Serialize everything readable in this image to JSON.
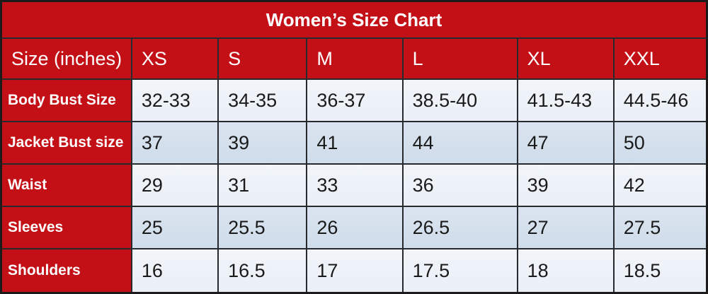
{
  "title": "Women’s Size Chart",
  "colors": {
    "red": "#c31016",
    "row_light": "#eaeff7",
    "row_dark": "#cfdcea",
    "border": "#26292e",
    "outer_border": "#1b1b1b",
    "header_text": "#ffffff",
    "data_text": "#1a1a1a"
  },
  "table": {
    "columns": [
      "Size (inches)",
      "XS",
      "S",
      "M",
      "L",
      "XL",
      "XXL"
    ],
    "rows": [
      {
        "label": "Body Bust Size",
        "values": [
          "32-33",
          "34-35",
          "36-37",
          "38.5-40",
          "41.5-43",
          "44.5-46"
        ]
      },
      {
        "label": "Jacket Bust size",
        "values": [
          "37",
          "39",
          "41",
          "44",
          "47",
          "50"
        ]
      },
      {
        "label": "Waist",
        "values": [
          "29",
          "31",
          "33",
          "36",
          "39",
          "42"
        ]
      },
      {
        "label": "Sleeves",
        "values": [
          "25",
          "25.5",
          "26",
          "26.5",
          "27",
          "27.5"
        ]
      },
      {
        "label": "Shoulders",
        "values": [
          "16",
          "16.5",
          "17",
          "17.5",
          "18",
          "18.5"
        ]
      }
    ]
  },
  "chart_data": {
    "type": "table",
    "title": "Women’s Size Chart",
    "unit": "inches",
    "categories": [
      "XS",
      "S",
      "M",
      "L",
      "XL",
      "XXL"
    ],
    "series": [
      {
        "name": "Body Bust Size",
        "values": [
          "32-33",
          "34-35",
          "36-37",
          "38.5-40",
          "41.5-43",
          "44.5-46"
        ]
      },
      {
        "name": "Jacket Bust size",
        "values": [
          37,
          39,
          41,
          44,
          47,
          50
        ]
      },
      {
        "name": "Waist",
        "values": [
          29,
          31,
          33,
          36,
          39,
          42
        ]
      },
      {
        "name": "Sleeves",
        "values": [
          25,
          25.5,
          26,
          26.5,
          27,
          27.5
        ]
      },
      {
        "name": "Shoulders",
        "values": [
          16,
          16.5,
          17,
          17.5,
          18,
          18.5
        ]
      }
    ]
  }
}
